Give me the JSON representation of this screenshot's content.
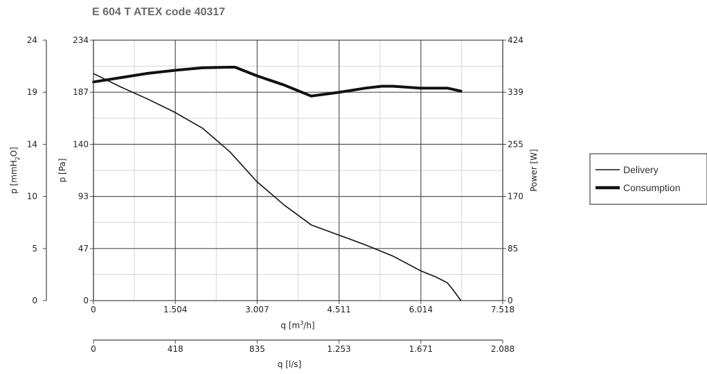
{
  "chart_data": {
    "type": "line",
    "title": "E 604 T ATEX code 40317",
    "x_primary": {
      "label_main": "q [m",
      "label_sup": "3",
      "label_tail": "/h]",
      "ticks": [
        "0",
        "1.504",
        "3.007",
        "4.511",
        "6.014",
        "7.518"
      ],
      "xlim": [
        0,
        7.518
      ]
    },
    "x_secondary": {
      "label": "q [l/s]",
      "ticks": [
        "0",
        "418",
        "835",
        "1.253",
        "1.671",
        "2.088"
      ]
    },
    "y_pa": {
      "label": "p [Pa]",
      "ticks": [
        "0",
        "47",
        "93",
        "140",
        "187",
        "234"
      ],
      "ylim": [
        0,
        234
      ]
    },
    "y_mmh2o": {
      "label_main": "p [mmH",
      "label_sub": "2",
      "label_tail": "O]",
      "ticks": [
        "0",
        "5",
        "10",
        "14",
        "19",
        "24"
      ]
    },
    "y_power": {
      "label": "Power [W]",
      "ticks": [
        "0",
        "85",
        "170",
        "255",
        "339",
        "424"
      ],
      "ylim": [
        0,
        424
      ]
    },
    "legend_position": "right",
    "series": [
      {
        "name": "Delivery",
        "axis": "pressure_pa",
        "style": "thin",
        "x": [
          0,
          0.5,
          1.0,
          1.5,
          2.0,
          2.5,
          3.0,
          3.5,
          4.0,
          4.5,
          5.0,
          5.5,
          6.0,
          6.3,
          6.5,
          6.6,
          6.75
        ],
        "y": [
          204,
          192,
          181,
          169,
          155,
          134,
          107,
          86,
          68,
          59,
          50,
          40,
          27,
          21,
          16,
          10,
          0
        ]
      },
      {
        "name": "Consumption",
        "axis": "power_w",
        "style": "thick",
        "x": [
          0,
          0.5,
          1.0,
          1.5,
          2.0,
          2.5,
          2.6,
          3.0,
          3.5,
          4.0,
          4.5,
          5.0,
          5.3,
          5.5,
          6.0,
          6.5,
          6.75
        ],
        "y": [
          356,
          363,
          370,
          375,
          379,
          380,
          380,
          366,
          351,
          333,
          339,
          346,
          349,
          349,
          346,
          346,
          341
        ]
      }
    ]
  }
}
